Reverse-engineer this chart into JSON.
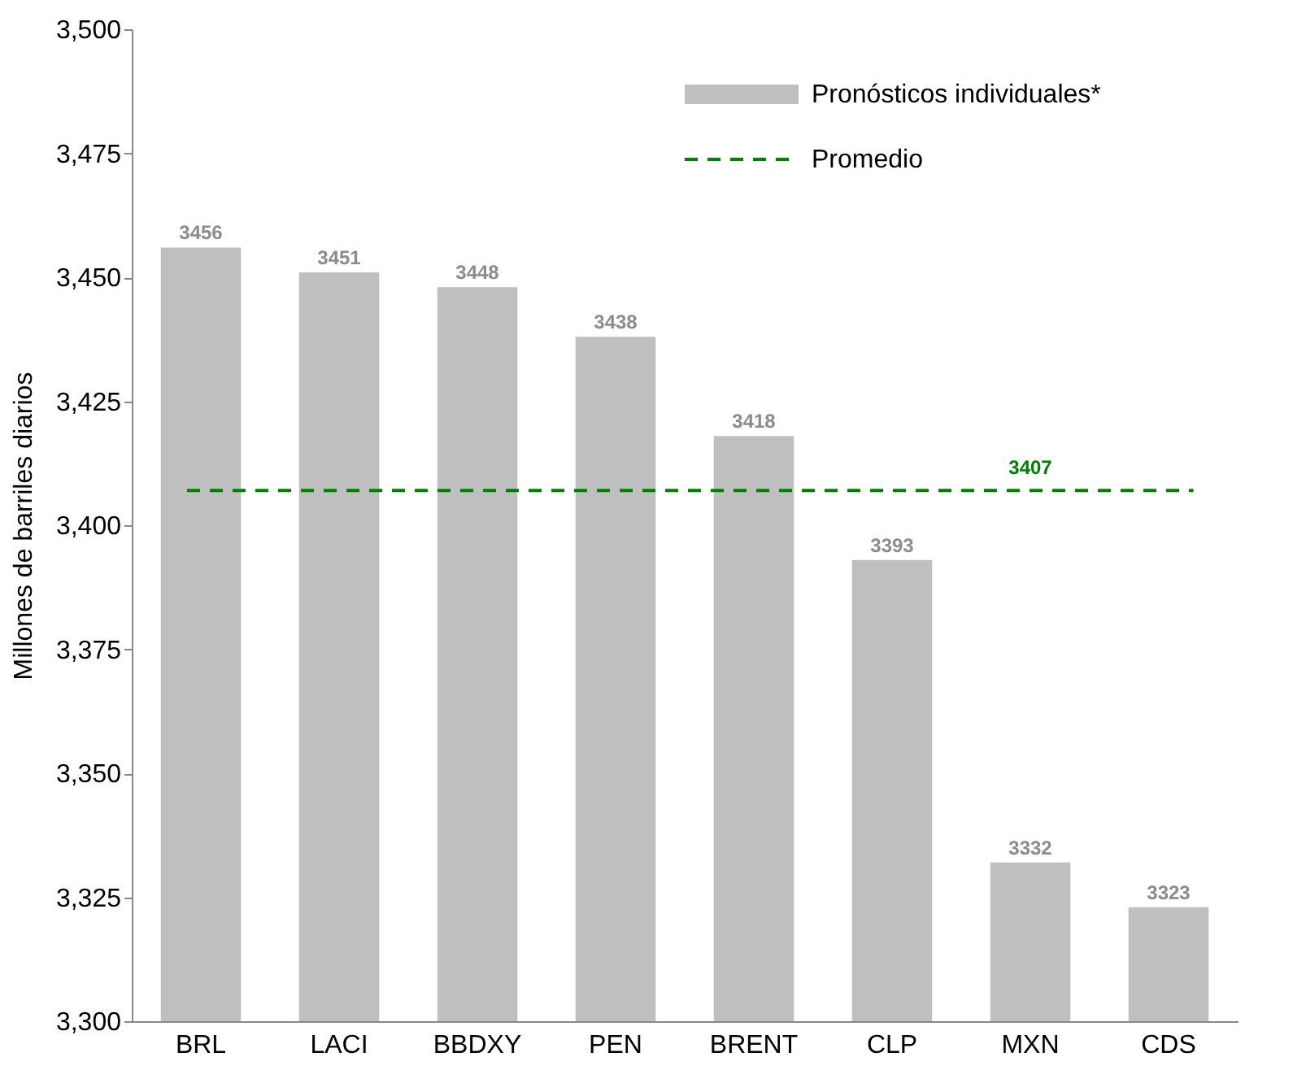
{
  "chart_data": {
    "type": "bar",
    "ylabel": "Millones de barriles diarios",
    "categories": [
      "BRL",
      "LACI",
      "BBDXY",
      "PEN",
      "BRENT",
      "CLP",
      "MXN",
      "CDS"
    ],
    "series": [
      {
        "name": "Pronósticos individuales*",
        "color": "#bfbfbf",
        "values": [
          3456,
          3451,
          3448,
          3438,
          3418,
          3393,
          3332,
          3323
        ]
      }
    ],
    "data_labels": true,
    "ylim": [
      3300,
      3500
    ],
    "yticks": [
      {
        "value": 3300,
        "label": "3,300"
      },
      {
        "value": 3325,
        "label": "3,325"
      },
      {
        "value": 3350,
        "label": "3,350"
      },
      {
        "value": 3375,
        "label": "3,375"
      },
      {
        "value": 3400,
        "label": "3,400"
      },
      {
        "value": 3425,
        "label": "3,425"
      },
      {
        "value": 3450,
        "label": "3,450"
      },
      {
        "value": 3475,
        "label": "3,475"
      },
      {
        "value": 3500,
        "label": "3,500"
      }
    ],
    "ref_lines": [
      {
        "axis": "y",
        "value": 3407,
        "label": "Promedio",
        "color": "#008000",
        "line_style": "dashed"
      }
    ],
    "annotations": [
      {
        "text": "3407",
        "x": "MXN",
        "y": 3407
      }
    ],
    "grid": false,
    "legend": "top right"
  }
}
